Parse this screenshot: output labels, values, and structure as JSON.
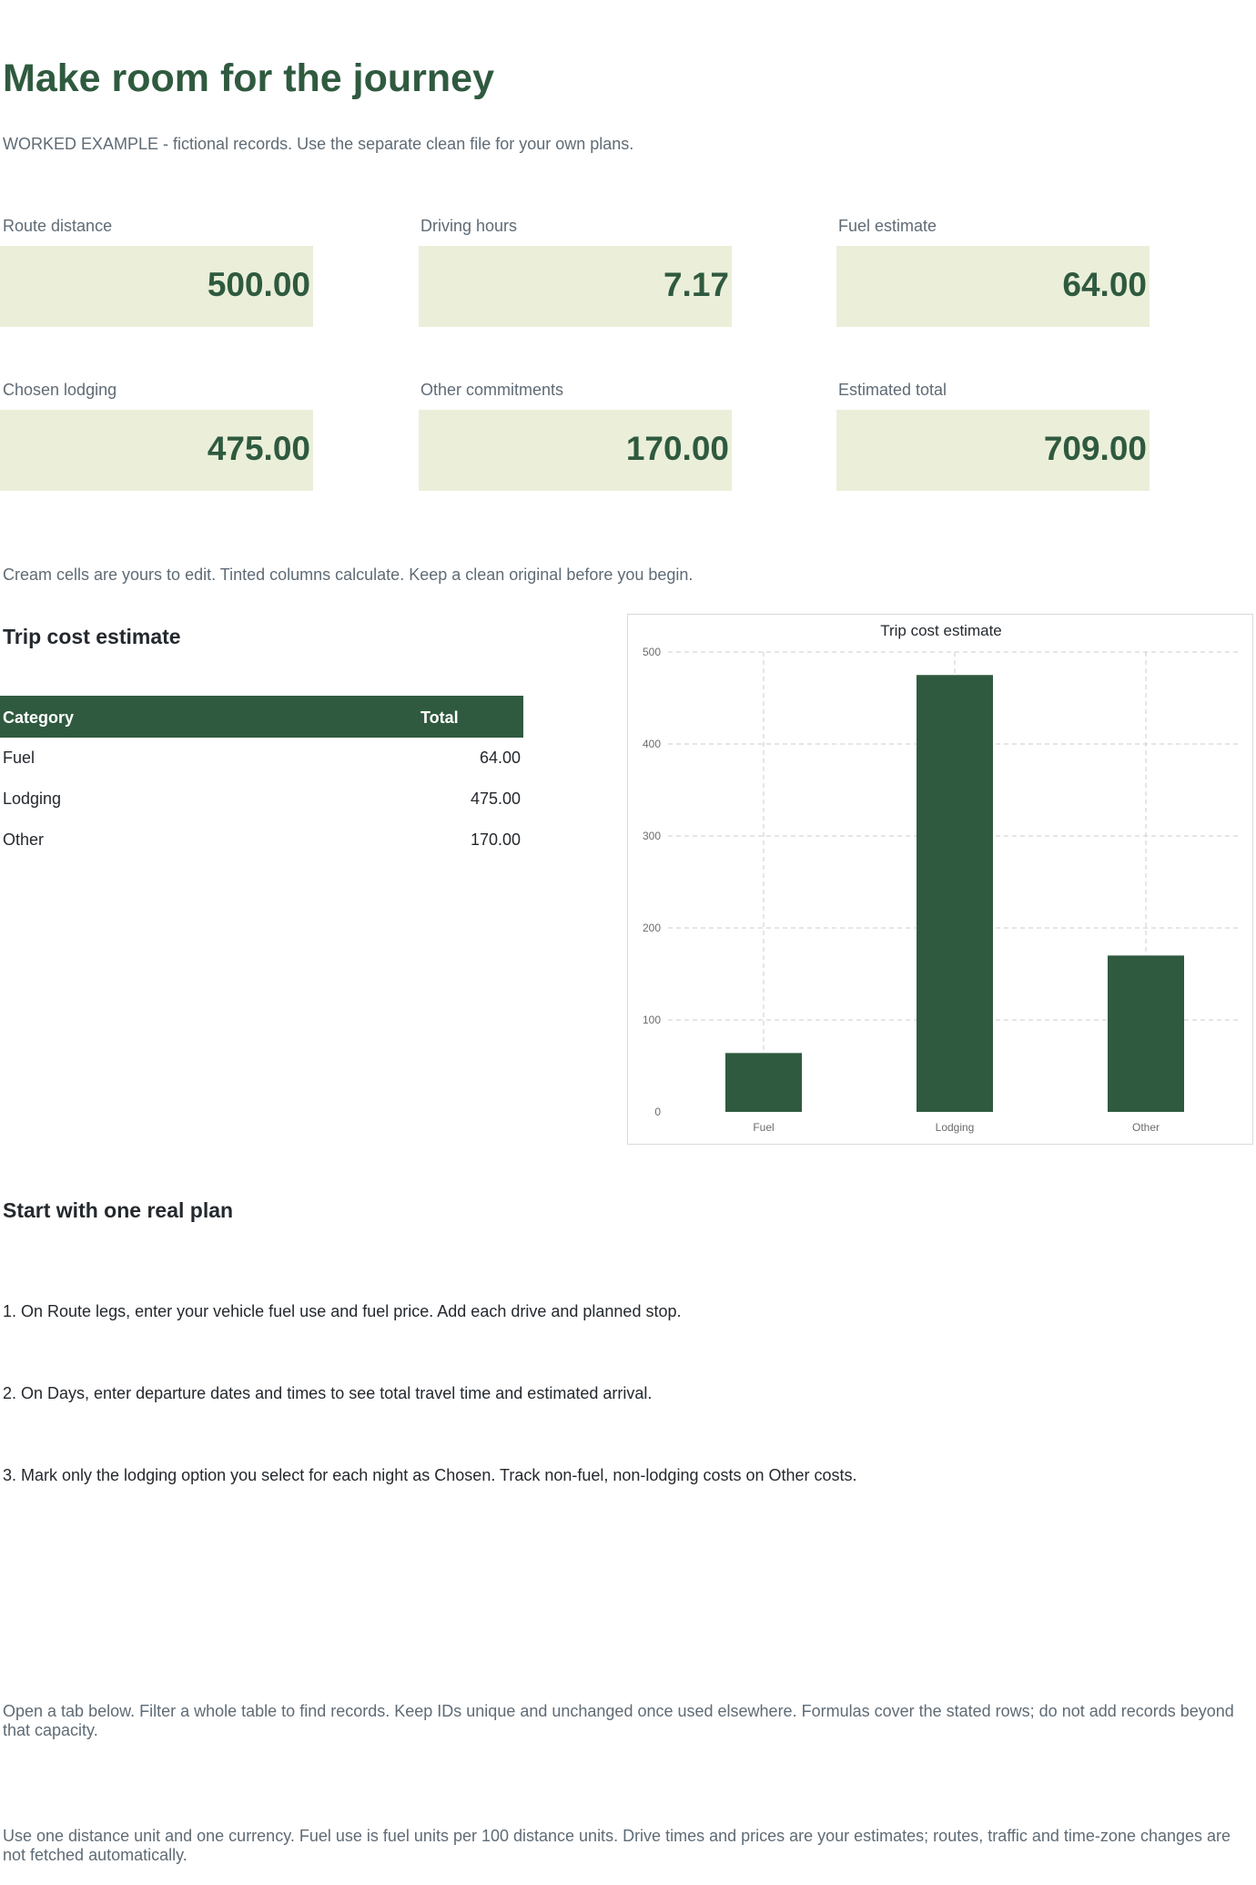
{
  "header": {
    "title": "Make room for the journey",
    "subtitle": "WORKED EXAMPLE - fictional records. Use the separate clean file for your own plans."
  },
  "kpis": [
    {
      "label": "Route distance",
      "value": "500.00"
    },
    {
      "label": "Driving hours",
      "value": "7.17"
    },
    {
      "label": "Fuel estimate",
      "value": "64.00"
    },
    {
      "label": "Chosen lodging",
      "value": "475.00"
    },
    {
      "label": "Other commitments",
      "value": "170.00"
    },
    {
      "label": "Estimated total",
      "value": "709.00"
    }
  ],
  "edit_note": "Cream cells are yours to edit. Tinted columns calculate. Keep a clean original before you begin.",
  "cost_section": {
    "heading": "Trip cost estimate",
    "table": {
      "headers": [
        "Category",
        "Total"
      ],
      "rows": [
        {
          "category": "Fuel",
          "total": "64.00"
        },
        {
          "category": "Lodging",
          "total": "475.00"
        },
        {
          "category": "Other",
          "total": "170.00"
        }
      ]
    }
  },
  "chart_data": {
    "type": "bar",
    "title": "Trip cost estimate",
    "categories": [
      "Fuel",
      "Lodging",
      "Other"
    ],
    "values": [
      64,
      475,
      170
    ],
    "xlabel": "",
    "ylabel": "",
    "ylim": [
      0,
      500
    ],
    "yticks": [
      0,
      100,
      200,
      300,
      400,
      500
    ],
    "grid": true,
    "legend": "none",
    "bar_color": "#2f5a3f"
  },
  "start_section": {
    "heading": "Start with one real plan",
    "steps": [
      "1. On Route legs, enter your vehicle fuel use and fuel price. Add each drive and planned stop.",
      "2. On Days, enter departure dates and times to see total travel time and estimated arrival.",
      "3. Mark only the lodging option you select for each night as Chosen. Track non-fuel, non-lodging costs on Other costs."
    ]
  },
  "footer_notes": [
    "Open a tab below. Filter a whole table to find records. Keep IDs unique and unchanged once used elsewhere. Formulas cover the stated rows; do not add records beyond that capacity.",
    "Use one distance unit and one currency. Fuel use is fuel units per 100 distance units. Drive times and prices are your estimates; routes, traffic and time-zone changes are not fetched automatically."
  ],
  "colors": {
    "accent": "#2f5a3f",
    "kpi_fill": "#ebefd9",
    "muted_text": "#5f6b75"
  }
}
